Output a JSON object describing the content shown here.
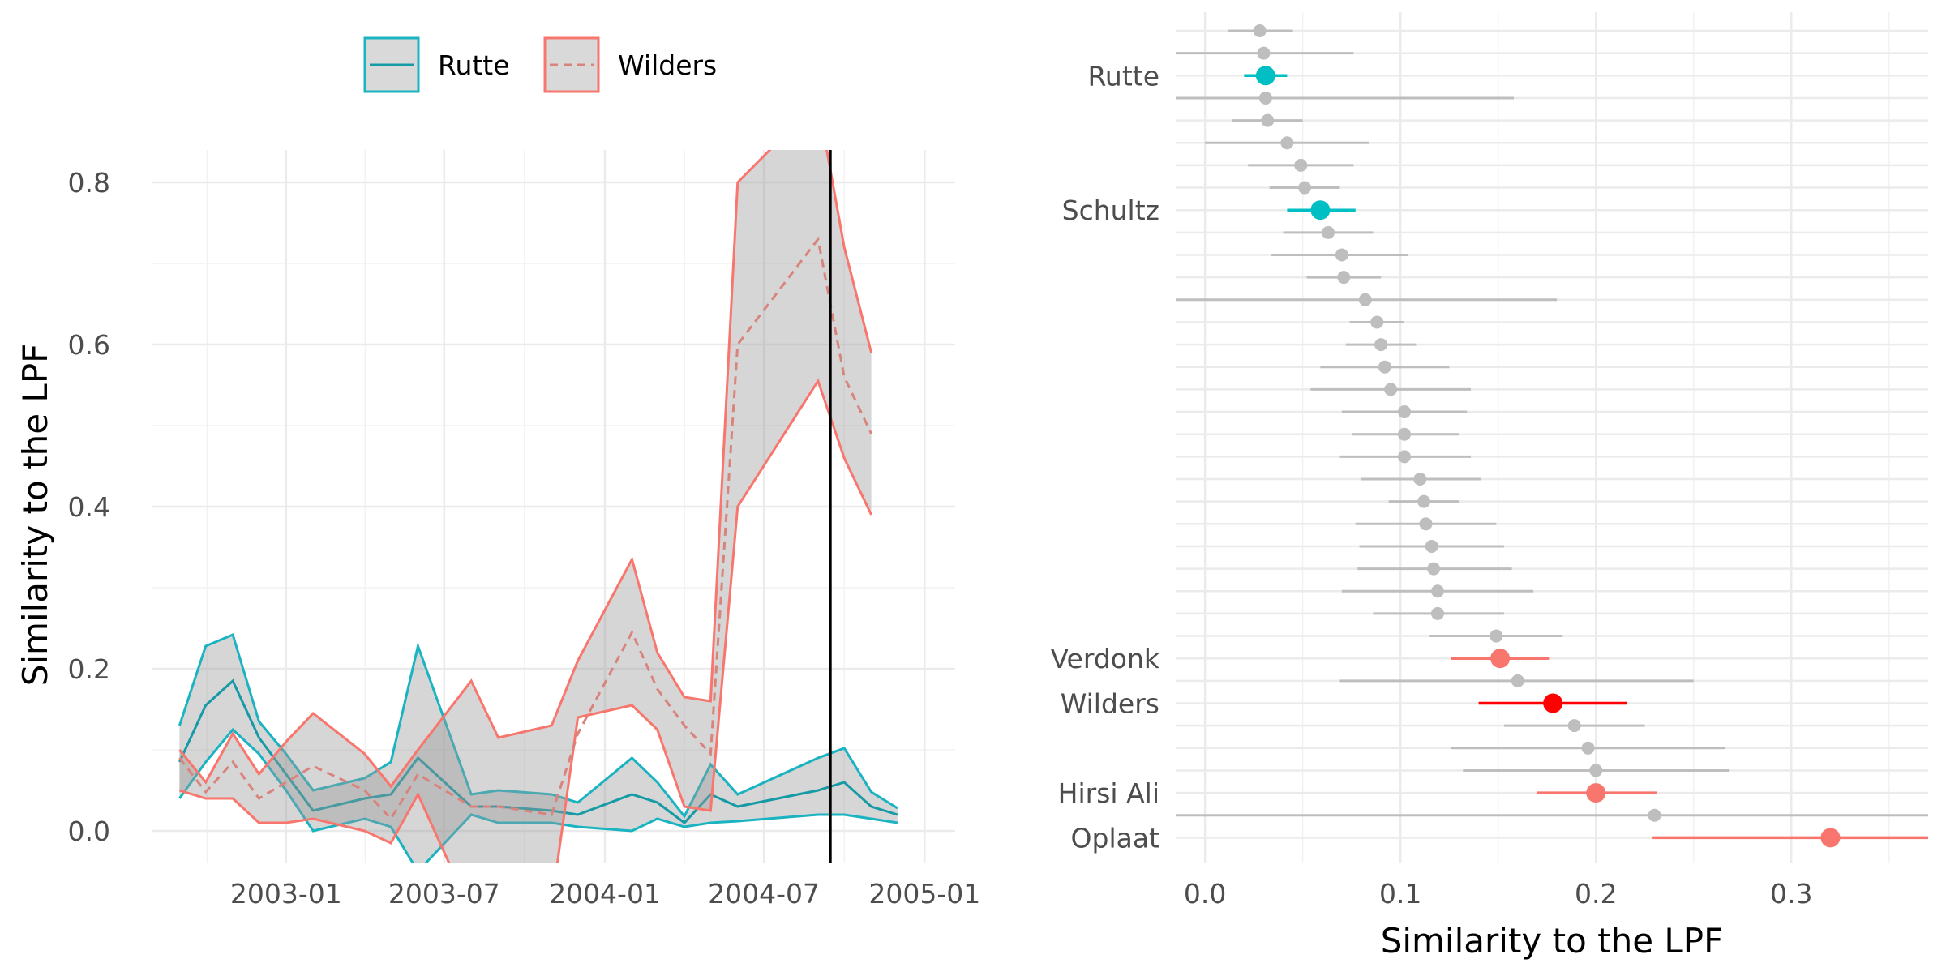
{
  "chart_data": [
    {
      "type": "line",
      "title": "",
      "xlabel": "",
      "ylabel": "Similarity to the LPF",
      "x_tick_labels": [
        "2003-01",
        "2003-07",
        "2004-01",
        "2004-07",
        "2005-01"
      ],
      "x_ticks": [
        "2003-01-01",
        "2003-07-01",
        "2004-01-01",
        "2004-07-01",
        "2005-01-01"
      ],
      "xlim": [
        "2002-08-01",
        "2005-02-05"
      ],
      "ylim": [
        -0.04,
        0.84
      ],
      "y_ticks": [
        0.0,
        0.2,
        0.4,
        0.6,
        0.8
      ],
      "y_tick_labels": [
        "0.0",
        "0.2",
        "0.4",
        "0.6",
        "0.8"
      ],
      "grid": true,
      "legend": "top",
      "vertical_line": {
        "x": "2004-09-15",
        "color": "#000000"
      },
      "series": [
        {
          "name": "Rutte",
          "color": "#1AB3C1",
          "linestyle": "solid",
          "x": [
            "2002-09-01",
            "2002-10-01",
            "2002-11-01",
            "2002-12-01",
            "2003-01-01",
            "2003-02-01",
            "2003-04-01",
            "2003-05-01",
            "2003-06-01",
            "2003-08-01",
            "2003-09-01",
            "2003-11-01",
            "2003-12-01",
            "2004-02-01",
            "2004-03-01",
            "2004-04-01",
            "2004-05-01",
            "2004-06-01",
            "2004-09-01",
            "2004-10-01",
            "2004-11-01",
            "2004-12-01"
          ],
          "y": [
            0.085,
            0.155,
            0.185,
            0.115,
            0.07,
            0.025,
            0.04,
            0.045,
            0.09,
            0.03,
            0.03,
            0.025,
            0.02,
            0.045,
            0.035,
            0.01,
            0.045,
            0.03,
            0.05,
            0.06,
            0.03,
            0.02
          ],
          "lower": [
            0.04,
            0.085,
            0.125,
            0.095,
            0.05,
            0.0,
            0.015,
            0.005,
            -0.05,
            0.02,
            0.01,
            0.01,
            0.005,
            0.0,
            0.015,
            0.005,
            0.01,
            0.012,
            0.02,
            0.02,
            0.015,
            0.01
          ],
          "upper": [
            0.13,
            0.228,
            0.242,
            0.135,
            0.095,
            0.05,
            0.065,
            0.085,
            0.228,
            0.045,
            0.05,
            0.045,
            0.035,
            0.09,
            0.06,
            0.018,
            0.082,
            0.045,
            0.09,
            0.102,
            0.048,
            0.028
          ]
        },
        {
          "name": "Wilders",
          "color": "#F8766D",
          "linestyle": "dashed",
          "x": [
            "2002-09-01",
            "2002-10-01",
            "2002-11-01",
            "2002-12-01",
            "2003-01-01",
            "2003-02-01",
            "2003-04-01",
            "2003-05-01",
            "2003-06-01",
            "2003-08-01",
            "2003-09-01",
            "2003-11-01",
            "2003-12-01",
            "2004-02-01",
            "2004-03-01",
            "2004-04-01",
            "2004-05-01",
            "2004-06-01",
            "2004-09-01",
            "2004-10-01",
            "2004-11-01",
            "2004-12-01"
          ],
          "y": [
            0.09,
            0.048,
            0.085,
            0.04,
            0.06,
            0.08,
            0.05,
            0.015,
            0.07,
            0.03,
            0.03,
            0.02,
            0.12,
            0.245,
            0.175,
            0.13,
            0.095,
            0.6,
            0.73,
            0.56,
            0.49,
            null
          ],
          "lower": [
            0.05,
            0.04,
            0.04,
            0.01,
            0.01,
            0.015,
            0.0,
            -0.015,
            0.045,
            -0.1,
            -0.1,
            -0.09,
            0.14,
            0.155,
            0.125,
            0.03,
            0.025,
            0.4,
            0.555,
            0.46,
            0.39,
            null
          ],
          "upper": [
            0.1,
            0.06,
            0.12,
            0.07,
            0.11,
            0.145,
            0.095,
            0.055,
            0.1,
            0.185,
            0.115,
            0.13,
            0.21,
            0.335,
            0.22,
            0.165,
            0.16,
            0.8,
            0.9,
            0.72,
            0.59,
            null
          ]
        }
      ]
    },
    {
      "type": "scatter",
      "title": "",
      "xlabel": "Similarity to the LPF",
      "ylabel": "",
      "xlim": [
        -0.015,
        0.37
      ],
      "x_ticks": [
        0.0,
        0.1,
        0.2,
        0.3
      ],
      "x_tick_labels": [
        "0.0",
        "0.1",
        "0.2",
        "0.3"
      ],
      "grid": true,
      "legend": "none",
      "labeled_rows": [
        "Rutte",
        "Schultz",
        "Verdonk",
        "Wilders",
        "Hirsi Ali",
        "Oplaat"
      ],
      "points": [
        {
          "label": "",
          "x": 0.028,
          "low": 0.012,
          "high": 0.045,
          "group": "other"
        },
        {
          "label": "",
          "x": 0.03,
          "low": -0.015,
          "high": 0.076,
          "group": "other"
        },
        {
          "label": "Rutte",
          "x": 0.031,
          "low": 0.02,
          "high": 0.042,
          "group": "vvd"
        },
        {
          "label": "",
          "x": 0.031,
          "low": -0.015,
          "high": 0.158,
          "group": "other"
        },
        {
          "label": "",
          "x": 0.032,
          "low": 0.014,
          "high": 0.05,
          "group": "other"
        },
        {
          "label": "",
          "x": 0.042,
          "low": 0.0,
          "high": 0.084,
          "group": "other"
        },
        {
          "label": "",
          "x": 0.049,
          "low": 0.022,
          "high": 0.076,
          "group": "other"
        },
        {
          "label": "",
          "x": 0.051,
          "low": 0.033,
          "high": 0.069,
          "group": "other"
        },
        {
          "label": "Schultz",
          "x": 0.059,
          "low": 0.042,
          "high": 0.077,
          "group": "vvd"
        },
        {
          "label": "",
          "x": 0.063,
          "low": 0.04,
          "high": 0.086,
          "group": "other"
        },
        {
          "label": "",
          "x": 0.07,
          "low": 0.034,
          "high": 0.104,
          "group": "other"
        },
        {
          "label": "",
          "x": 0.071,
          "low": 0.052,
          "high": 0.09,
          "group": "other"
        },
        {
          "label": "",
          "x": 0.082,
          "low": -0.015,
          "high": 0.18,
          "group": "other"
        },
        {
          "label": "",
          "x": 0.088,
          "low": 0.074,
          "high": 0.102,
          "group": "other"
        },
        {
          "label": "",
          "x": 0.09,
          "low": 0.072,
          "high": 0.108,
          "group": "other"
        },
        {
          "label": "",
          "x": 0.092,
          "low": 0.059,
          "high": 0.125,
          "group": "other"
        },
        {
          "label": "",
          "x": 0.095,
          "low": 0.054,
          "high": 0.136,
          "group": "other"
        },
        {
          "label": "",
          "x": 0.102,
          "low": 0.07,
          "high": 0.134,
          "group": "other"
        },
        {
          "label": "",
          "x": 0.102,
          "low": 0.075,
          "high": 0.13,
          "group": "other"
        },
        {
          "label": "",
          "x": 0.102,
          "low": 0.069,
          "high": 0.136,
          "group": "other"
        },
        {
          "label": "",
          "x": 0.11,
          "low": 0.08,
          "high": 0.141,
          "group": "other"
        },
        {
          "label": "",
          "x": 0.112,
          "low": 0.094,
          "high": 0.13,
          "group": "other"
        },
        {
          "label": "",
          "x": 0.113,
          "low": 0.077,
          "high": 0.149,
          "group": "other"
        },
        {
          "label": "",
          "x": 0.116,
          "low": 0.079,
          "high": 0.153,
          "group": "other"
        },
        {
          "label": "",
          "x": 0.117,
          "low": 0.078,
          "high": 0.157,
          "group": "other"
        },
        {
          "label": "",
          "x": 0.119,
          "low": 0.07,
          "high": 0.168,
          "group": "other"
        },
        {
          "label": "",
          "x": 0.119,
          "low": 0.086,
          "high": 0.153,
          "group": "other"
        },
        {
          "label": "",
          "x": 0.149,
          "low": 0.115,
          "high": 0.183,
          "group": "other"
        },
        {
          "label": "Verdonk",
          "x": 0.151,
          "low": 0.126,
          "high": 0.176,
          "group": "vvd-pink"
        },
        {
          "label": "",
          "x": 0.16,
          "low": 0.069,
          "high": 0.25,
          "group": "other"
        },
        {
          "label": "Wilders",
          "x": 0.178,
          "low": 0.14,
          "high": 0.216,
          "group": "wilders"
        },
        {
          "label": "",
          "x": 0.189,
          "low": 0.153,
          "high": 0.225,
          "group": "other"
        },
        {
          "label": "",
          "x": 0.196,
          "low": 0.126,
          "high": 0.266,
          "group": "other"
        },
        {
          "label": "",
          "x": 0.2,
          "low": 0.132,
          "high": 0.268,
          "group": "other"
        },
        {
          "label": "Hirsi Ali",
          "x": 0.2,
          "low": 0.17,
          "high": 0.231,
          "group": "vvd-pink"
        },
        {
          "label": "",
          "x": 0.23,
          "low": -0.015,
          "high": 0.37,
          "group": "other"
        },
        {
          "label": "Oplaat",
          "x": 0.32,
          "low": 0.229,
          "high": 0.37,
          "group": "vvd-pink"
        }
      ],
      "colors": {
        "vvd": "#00BFC4",
        "vvd-pink": "#F8766D",
        "wilders": "#FF0000",
        "other": "#BEBEBE"
      }
    }
  ]
}
